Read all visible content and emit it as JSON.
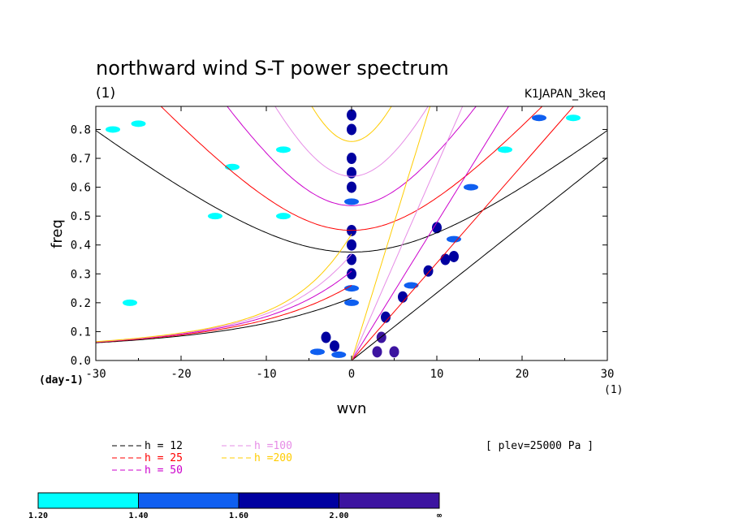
{
  "chart_data": {
    "type": "heatmap",
    "title": "northward wind S-T power spectrum",
    "subtitle_left": "(1)",
    "subtitle_right": "K1JAPAN_3keq",
    "xlabel": "wvn",
    "ylabel": "freq",
    "y_unit_label": "(day-1)",
    "x_unit_label": "(1)",
    "xlim": [
      -30,
      30
    ],
    "ylim": [
      0,
      0.88
    ],
    "xticks": [
      -30,
      -20,
      -10,
      0,
      10,
      20,
      30
    ],
    "yticks": [
      0.0,
      0.1,
      0.2,
      0.3,
      0.4,
      0.5,
      0.6,
      0.7,
      0.8
    ],
    "level_info": "[ plev=25000 Pa ]",
    "colorbar": {
      "levels": [
        "1.20",
        "1.40",
        "1.60",
        "2.00",
        "∞"
      ],
      "colors": [
        "#00ffff",
        "#0f5ff0",
        "#0000a0",
        "#3c14a0"
      ]
    },
    "dispersion_curves": [
      {
        "label": "h = 12",
        "h": 12,
        "color": "#000000"
      },
      {
        "label": "h = 25",
        "h": 25,
        "color": "#ff0000"
      },
      {
        "label": "h = 50",
        "h": 50,
        "color": "#cc00cc"
      },
      {
        "label": "h =100",
        "h": 100,
        "color": "#e68ce6"
      },
      {
        "label": "h =200",
        "h": 200,
        "color": "#ffcc00"
      }
    ],
    "power_blobs": [
      {
        "x": 0,
        "y": 0.85,
        "level": 2
      },
      {
        "x": 0,
        "y": 0.8,
        "level": 2
      },
      {
        "x": 0,
        "y": 0.7,
        "level": 2
      },
      {
        "x": 0,
        "y": 0.65,
        "level": 2
      },
      {
        "x": 0,
        "y": 0.6,
        "level": 2
      },
      {
        "x": 0,
        "y": 0.55,
        "level": 1
      },
      {
        "x": 0,
        "y": 0.45,
        "level": 2
      },
      {
        "x": 0,
        "y": 0.4,
        "level": 2
      },
      {
        "x": 0,
        "y": 0.35,
        "level": 2
      },
      {
        "x": 0,
        "y": 0.3,
        "level": 2
      },
      {
        "x": 0,
        "y": 0.25,
        "level": 1
      },
      {
        "x": 0,
        "y": 0.2,
        "level": 1
      },
      {
        "x": 3,
        "y": 0.03,
        "level": 3
      },
      {
        "x": 5,
        "y": 0.03,
        "level": 3
      },
      {
        "x": 3.5,
        "y": 0.08,
        "level": 3
      },
      {
        "x": 4,
        "y": 0.15,
        "level": 2
      },
      {
        "x": 6,
        "y": 0.22,
        "level": 2
      },
      {
        "x": 7,
        "y": 0.26,
        "level": 1
      },
      {
        "x": 9,
        "y": 0.31,
        "level": 2
      },
      {
        "x": 11,
        "y": 0.35,
        "level": 2
      },
      {
        "x": 12,
        "y": 0.36,
        "level": 2
      },
      {
        "x": 10,
        "y": 0.46,
        "level": 2
      },
      {
        "x": 12,
        "y": 0.42,
        "level": 1
      },
      {
        "x": 14,
        "y": 0.6,
        "level": 1
      },
      {
        "x": -3,
        "y": 0.08,
        "level": 2
      },
      {
        "x": -2,
        "y": 0.05,
        "level": 2
      },
      {
        "x": -4,
        "y": 0.03,
        "level": 1
      },
      {
        "x": -1.5,
        "y": 0.02,
        "level": 1
      },
      {
        "x": -28,
        "y": 0.8,
        "level": 0
      },
      {
        "x": -25,
        "y": 0.82,
        "level": 0
      },
      {
        "x": -14,
        "y": 0.67,
        "level": 0
      },
      {
        "x": -8,
        "y": 0.73,
        "level": 0
      },
      {
        "x": -16,
        "y": 0.5,
        "level": 0
      },
      {
        "x": -8,
        "y": 0.5,
        "level": 0
      },
      {
        "x": -26,
        "y": 0.2,
        "level": 0
      },
      {
        "x": 22,
        "y": 0.84,
        "level": 1
      },
      {
        "x": 18,
        "y": 0.73,
        "level": 0
      },
      {
        "x": 26,
        "y": 0.84,
        "level": 0
      }
    ]
  }
}
